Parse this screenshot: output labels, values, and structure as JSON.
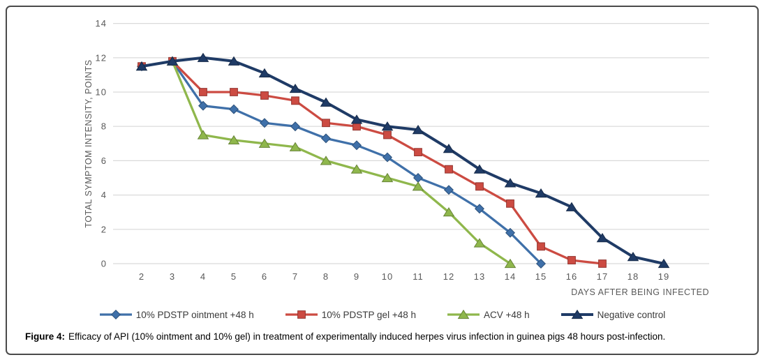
{
  "figure": {
    "caption_prefix": "Figure 4:",
    "caption_text": "Efficacy of API (10% ointment and 10% gel) in treatment of experimentally induced herpes virus infection in guinea pigs 48 hours post-infection."
  },
  "colors": {
    "gridline": "#d9d9d9",
    "axis_text": "#595959",
    "legend_text": "#3a3a3a",
    "border": "#4a4a4a"
  },
  "chart_data": {
    "type": "line",
    "title": "",
    "xlabel": "DAYS AFTER BEING INFECTED",
    "ylabel": "TOTAL SYMPTOM INTENSITY, POINTS",
    "x_ticks": [
      2,
      3,
      4,
      5,
      6,
      7,
      8,
      9,
      10,
      11,
      12,
      13,
      14,
      15,
      16,
      17,
      18,
      19
    ],
    "y_ticks": [
      0,
      2,
      4,
      6,
      8,
      10,
      12,
      14
    ],
    "xlim": [
      2,
      19
    ],
    "ylim": [
      0,
      14
    ],
    "grid": "horizontal",
    "legend_position": "bottom",
    "series": [
      {
        "name": "10% PDSTP ointment +48 h",
        "color": "#3f70a9",
        "marker": "diamond",
        "points": [
          [
            2,
            11.5
          ],
          [
            3,
            11.8
          ],
          [
            4,
            9.2
          ],
          [
            5,
            9.0
          ],
          [
            6,
            8.2
          ],
          [
            7,
            8.0
          ],
          [
            8,
            7.3
          ],
          [
            9,
            6.9
          ],
          [
            10,
            6.2
          ],
          [
            11,
            5.0
          ],
          [
            12,
            4.3
          ],
          [
            13,
            3.2
          ],
          [
            14,
            1.8
          ],
          [
            15,
            0
          ]
        ]
      },
      {
        "name": "10% PDSTP gel +48 h",
        "color": "#cc4b42",
        "marker": "square",
        "points": [
          [
            2,
            11.5
          ],
          [
            3,
            11.8
          ],
          [
            4,
            10.0
          ],
          [
            5,
            10.0
          ],
          [
            6,
            9.8
          ],
          [
            7,
            9.5
          ],
          [
            8,
            8.2
          ],
          [
            9,
            8.0
          ],
          [
            10,
            7.5
          ],
          [
            11,
            6.5
          ],
          [
            12,
            5.5
          ],
          [
            13,
            4.5
          ],
          [
            14,
            3.5
          ],
          [
            15,
            1.0
          ],
          [
            16,
            0.2
          ],
          [
            17,
            0
          ]
        ]
      },
      {
        "name": "ACV +48 h",
        "color": "#8fb74c",
        "marker": "triangle",
        "points": [
          [
            3,
            11.8
          ],
          [
            4,
            7.5
          ],
          [
            5,
            7.2
          ],
          [
            6,
            7.0
          ],
          [
            7,
            6.8
          ],
          [
            8,
            6.0
          ],
          [
            9,
            5.5
          ],
          [
            10,
            5.0
          ],
          [
            11,
            4.5
          ],
          [
            12,
            3.0
          ],
          [
            13,
            1.2
          ],
          [
            14,
            0
          ]
        ]
      },
      {
        "name": "Negative control",
        "color": "#1f3b66",
        "marker": "triangle",
        "points": [
          [
            2,
            11.5
          ],
          [
            3,
            11.8
          ],
          [
            4,
            12.0
          ],
          [
            5,
            11.8
          ],
          [
            6,
            11.1
          ],
          [
            7,
            10.2
          ],
          [
            8,
            9.4
          ],
          [
            9,
            8.4
          ],
          [
            10,
            8.0
          ],
          [
            11,
            7.8
          ],
          [
            12,
            6.7
          ],
          [
            13,
            5.5
          ],
          [
            14,
            4.7
          ],
          [
            15,
            4.1
          ],
          [
            16,
            3.3
          ],
          [
            17,
            1.5
          ],
          [
            18,
            0.4
          ],
          [
            19,
            0
          ]
        ]
      }
    ]
  }
}
